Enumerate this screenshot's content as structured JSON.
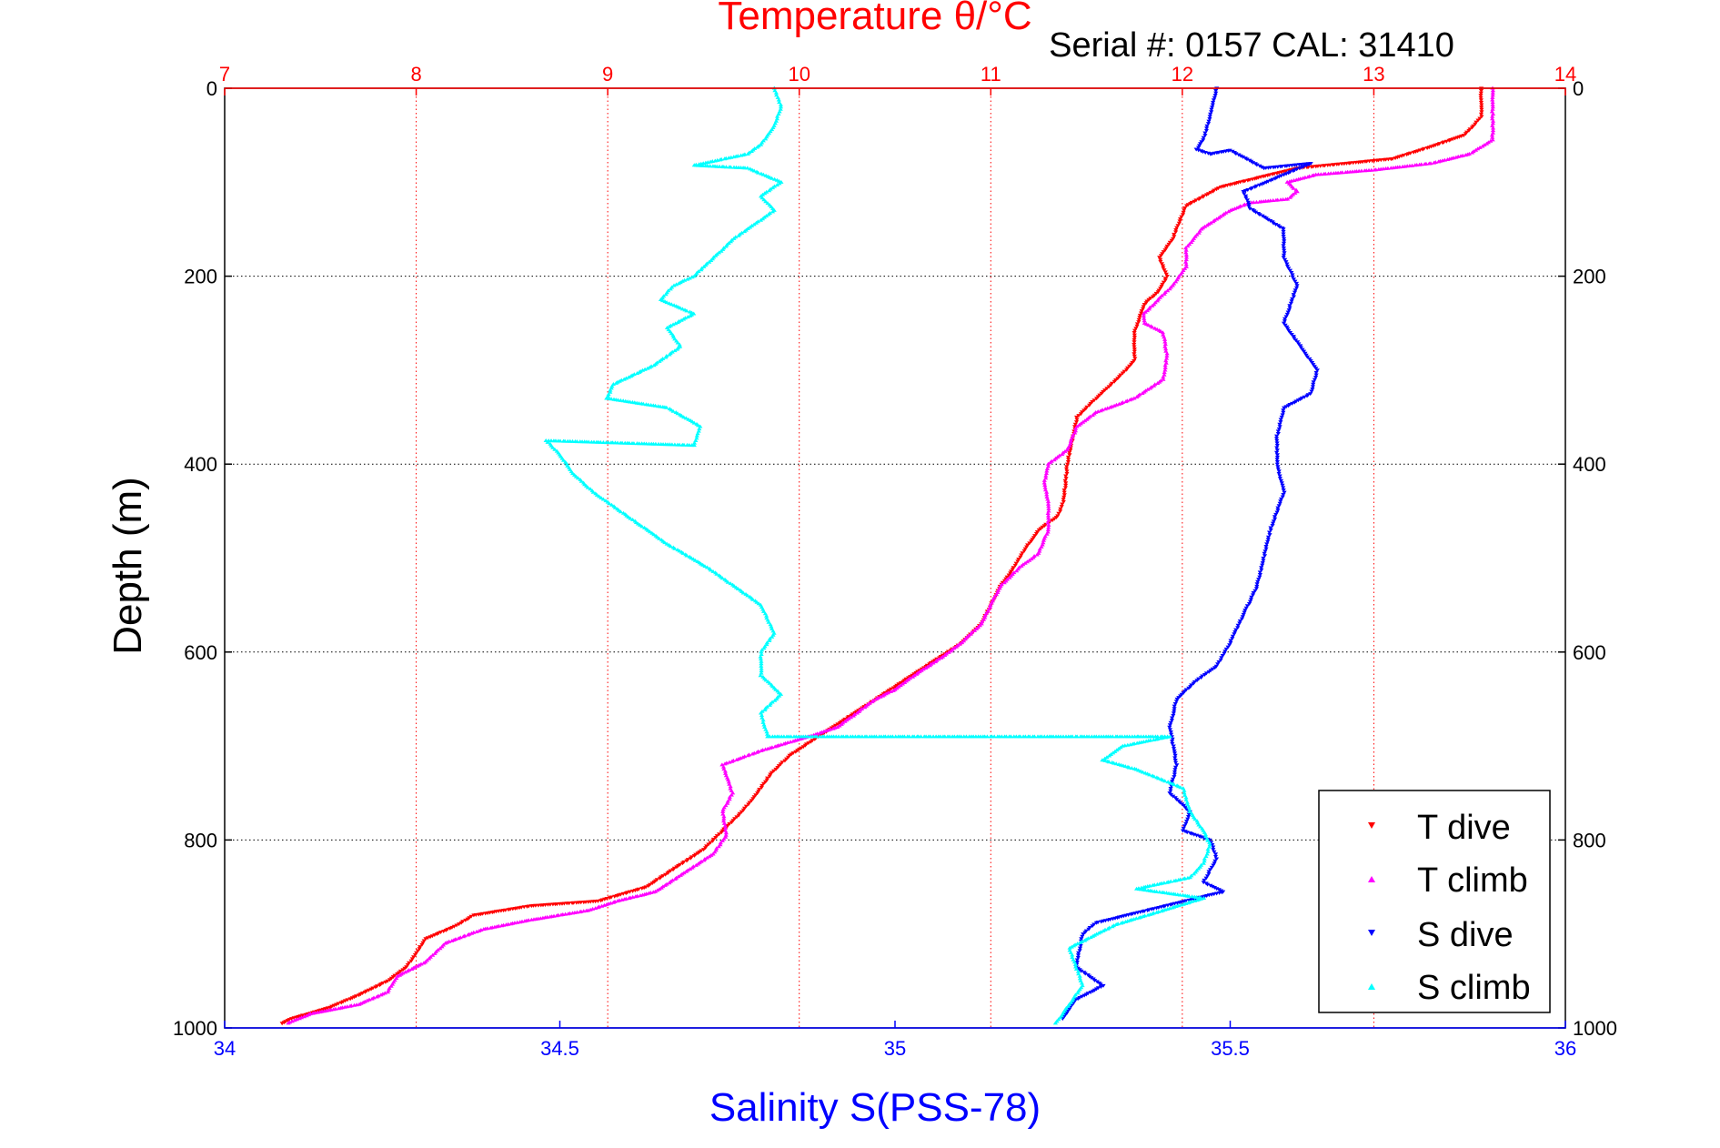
{
  "chart_data": {
    "type": "scatter",
    "title": "Temperature θ/°C",
    "annotation": "Serial #: 0157  CAL: 31410",
    "xlabel": "Salinity S(PSS-78)",
    "x2label": "Temperature θ/°C",
    "ylabel": "Depth (m)",
    "xlim": [
      34,
      36
    ],
    "x2lim": [
      7,
      14
    ],
    "ylim": [
      0,
      1000
    ],
    "y_reversed": true,
    "xticks": [
      "34",
      "34.5",
      "35",
      "35.5",
      "36"
    ],
    "x2ticks": [
      "7",
      "8",
      "9",
      "10",
      "11",
      "12",
      "13",
      "14"
    ],
    "yticks": [
      "0",
      "200",
      "400",
      "600",
      "800",
      "1000"
    ],
    "grid": true,
    "legend_position": "bottom-right",
    "colors": {
      "t_dive": "#ff0000",
      "t_climb": "#ff00ff",
      "s_dive": "#0000ff",
      "s_climb": "#00ffff",
      "temperature_axis": "#ff0000",
      "salinity_axis": "#0000ff"
    },
    "series": [
      {
        "name": "T dive",
        "axis": "temperature",
        "marker": "triangle-down",
        "color": "#ff0000",
        "points": [
          [
            13.56,
            0
          ],
          [
            13.56,
            30
          ],
          [
            13.52,
            40
          ],
          [
            13.47,
            50
          ],
          [
            13.3,
            62
          ],
          [
            13.1,
            75
          ],
          [
            12.6,
            85
          ],
          [
            12.4,
            95
          ],
          [
            12.2,
            105
          ],
          [
            12.02,
            125
          ],
          [
            11.95,
            160
          ],
          [
            11.88,
            180
          ],
          [
            11.92,
            200
          ],
          [
            11.88,
            215
          ],
          [
            11.8,
            230
          ],
          [
            11.75,
            260
          ],
          [
            11.75,
            290
          ],
          [
            11.68,
            305
          ],
          [
            11.55,
            330
          ],
          [
            11.45,
            350
          ],
          [
            11.42,
            380
          ],
          [
            11.4,
            400
          ],
          [
            11.38,
            440
          ],
          [
            11.35,
            455
          ],
          [
            11.25,
            470
          ],
          [
            11.18,
            490
          ],
          [
            11.12,
            510
          ],
          [
            11.05,
            530
          ],
          [
            11.0,
            550
          ],
          [
            10.95,
            570
          ],
          [
            10.85,
            590
          ],
          [
            10.7,
            610
          ],
          [
            10.55,
            630
          ],
          [
            10.4,
            650
          ],
          [
            10.25,
            670
          ],
          [
            10.1,
            690
          ],
          [
            9.95,
            710
          ],
          [
            9.85,
            730
          ],
          [
            9.78,
            750
          ],
          [
            9.7,
            770
          ],
          [
            9.6,
            790
          ],
          [
            9.5,
            810
          ],
          [
            9.35,
            830
          ],
          [
            9.2,
            850
          ],
          [
            8.95,
            865
          ],
          [
            8.6,
            870
          ],
          [
            8.3,
            880
          ],
          [
            8.2,
            892
          ],
          [
            8.05,
            905
          ],
          [
            8.0,
            920
          ],
          [
            7.95,
            935
          ],
          [
            7.85,
            950
          ],
          [
            7.7,
            965
          ],
          [
            7.55,
            978
          ],
          [
            7.35,
            990
          ],
          [
            7.3,
            995
          ]
        ]
      },
      {
        "name": "T climb",
        "axis": "temperature",
        "marker": "triangle-up",
        "color": "#ff00ff",
        "points": [
          [
            7.33,
            995
          ],
          [
            7.45,
            985
          ],
          [
            7.7,
            975
          ],
          [
            7.85,
            962
          ],
          [
            7.9,
            945
          ],
          [
            8.05,
            930
          ],
          [
            8.15,
            910
          ],
          [
            8.35,
            895
          ],
          [
            8.6,
            885
          ],
          [
            8.9,
            875
          ],
          [
            9.05,
            865
          ],
          [
            9.25,
            855
          ],
          [
            9.4,
            835
          ],
          [
            9.55,
            815
          ],
          [
            9.62,
            795
          ],
          [
            9.6,
            770
          ],
          [
            9.65,
            750
          ],
          [
            9.6,
            720
          ],
          [
            9.8,
            705
          ],
          [
            10.05,
            690
          ],
          [
            10.2,
            680
          ],
          [
            10.3,
            665
          ],
          [
            10.4,
            650
          ],
          [
            10.5,
            640
          ],
          [
            10.6,
            625
          ],
          [
            10.75,
            605
          ],
          [
            10.85,
            590
          ],
          [
            10.95,
            570
          ],
          [
            11.0,
            550
          ],
          [
            11.05,
            530
          ],
          [
            11.15,
            510
          ],
          [
            11.25,
            495
          ],
          [
            11.3,
            470
          ],
          [
            11.3,
            440
          ],
          [
            11.28,
            420
          ],
          [
            11.3,
            400
          ],
          [
            11.4,
            385
          ],
          [
            11.45,
            360
          ],
          [
            11.55,
            345
          ],
          [
            11.75,
            330
          ],
          [
            11.9,
            310
          ],
          [
            11.92,
            285
          ],
          [
            11.9,
            260
          ],
          [
            11.8,
            250
          ],
          [
            11.8,
            240
          ],
          [
            11.85,
            230
          ],
          [
            11.95,
            210
          ],
          [
            12.02,
            190
          ],
          [
            12.02,
            170
          ],
          [
            12.1,
            150
          ],
          [
            12.25,
            130
          ],
          [
            12.35,
            122
          ],
          [
            12.55,
            118
          ],
          [
            12.6,
            110
          ],
          [
            12.55,
            100
          ],
          [
            12.7,
            92
          ],
          [
            13.0,
            87
          ],
          [
            13.3,
            80
          ],
          [
            13.5,
            70
          ],
          [
            13.62,
            55
          ],
          [
            13.62,
            30
          ],
          [
            13.62,
            0
          ]
        ]
      },
      {
        "name": "S dive",
        "axis": "salinity",
        "marker": "triangle-down",
        "color": "#0000ff",
        "points": [
          [
            35.48,
            0
          ],
          [
            35.47,
            30
          ],
          [
            35.46,
            55
          ],
          [
            35.45,
            65
          ],
          [
            35.47,
            70
          ],
          [
            35.5,
            66
          ],
          [
            35.55,
            85
          ],
          [
            35.62,
            80
          ],
          [
            35.56,
            98
          ],
          [
            35.52,
            110
          ],
          [
            35.53,
            128
          ],
          [
            35.58,
            150
          ],
          [
            35.58,
            180
          ],
          [
            35.6,
            210
          ],
          [
            35.58,
            250
          ],
          [
            35.6,
            270
          ],
          [
            35.63,
            300
          ],
          [
            35.62,
            325
          ],
          [
            35.58,
            340
          ],
          [
            35.57,
            370
          ],
          [
            35.57,
            400
          ],
          [
            35.58,
            430
          ],
          [
            35.56,
            470
          ],
          [
            35.55,
            500
          ],
          [
            35.54,
            530
          ],
          [
            35.52,
            560
          ],
          [
            35.5,
            590
          ],
          [
            35.48,
            615
          ],
          [
            35.45,
            630
          ],
          [
            35.42,
            650
          ],
          [
            35.41,
            680
          ],
          [
            35.42,
            720
          ],
          [
            35.41,
            750
          ],
          [
            35.44,
            770
          ],
          [
            35.43,
            790
          ],
          [
            35.47,
            800
          ],
          [
            35.48,
            820
          ],
          [
            35.46,
            845
          ],
          [
            35.49,
            855
          ],
          [
            35.3,
            888
          ],
          [
            35.28,
            900
          ],
          [
            35.27,
            935
          ],
          [
            35.31,
            955
          ],
          [
            35.27,
            970
          ],
          [
            35.25,
            990
          ]
        ]
      },
      {
        "name": "S climb",
        "axis": "salinity",
        "marker": "triangle-up",
        "color": "#00ffff",
        "points": [
          [
            35.24,
            995
          ],
          [
            35.26,
            975
          ],
          [
            35.28,
            955
          ],
          [
            35.27,
            935
          ],
          [
            35.26,
            915
          ],
          [
            35.33,
            890
          ],
          [
            35.4,
            875
          ],
          [
            35.46,
            862
          ],
          [
            35.36,
            852
          ],
          [
            35.44,
            840
          ],
          [
            35.46,
            825
          ],
          [
            35.47,
            805
          ],
          [
            35.46,
            790
          ],
          [
            35.44,
            770
          ],
          [
            35.43,
            745
          ],
          [
            35.36,
            725
          ],
          [
            35.31,
            715
          ],
          [
            35.34,
            700
          ],
          [
            35.41,
            690
          ],
          [
            34.81,
            690
          ],
          [
            34.8,
            665
          ],
          [
            34.83,
            645
          ],
          [
            34.8,
            625
          ],
          [
            34.8,
            600
          ],
          [
            34.82,
            580
          ],
          [
            34.8,
            550
          ],
          [
            34.76,
            530
          ],
          [
            34.72,
            510
          ],
          [
            34.66,
            485
          ],
          [
            34.62,
            465
          ],
          [
            34.58,
            445
          ],
          [
            34.55,
            430
          ],
          [
            34.52,
            410
          ],
          [
            34.5,
            390
          ],
          [
            34.48,
            375
          ],
          [
            34.7,
            380
          ],
          [
            34.71,
            360
          ],
          [
            34.66,
            340
          ],
          [
            34.57,
            330
          ],
          [
            34.58,
            315
          ],
          [
            34.64,
            295
          ],
          [
            34.68,
            275
          ],
          [
            34.66,
            255
          ],
          [
            34.7,
            240
          ],
          [
            34.65,
            225
          ],
          [
            34.67,
            210
          ],
          [
            34.7,
            200
          ],
          [
            34.73,
            180
          ],
          [
            34.76,
            160
          ],
          [
            34.79,
            145
          ],
          [
            34.82,
            130
          ],
          [
            34.8,
            115
          ],
          [
            34.83,
            100
          ],
          [
            34.78,
            85
          ],
          [
            34.7,
            82
          ],
          [
            34.78,
            70
          ],
          [
            34.8,
            60
          ],
          [
            34.82,
            40
          ],
          [
            34.83,
            20
          ],
          [
            34.82,
            0
          ]
        ]
      }
    ]
  }
}
